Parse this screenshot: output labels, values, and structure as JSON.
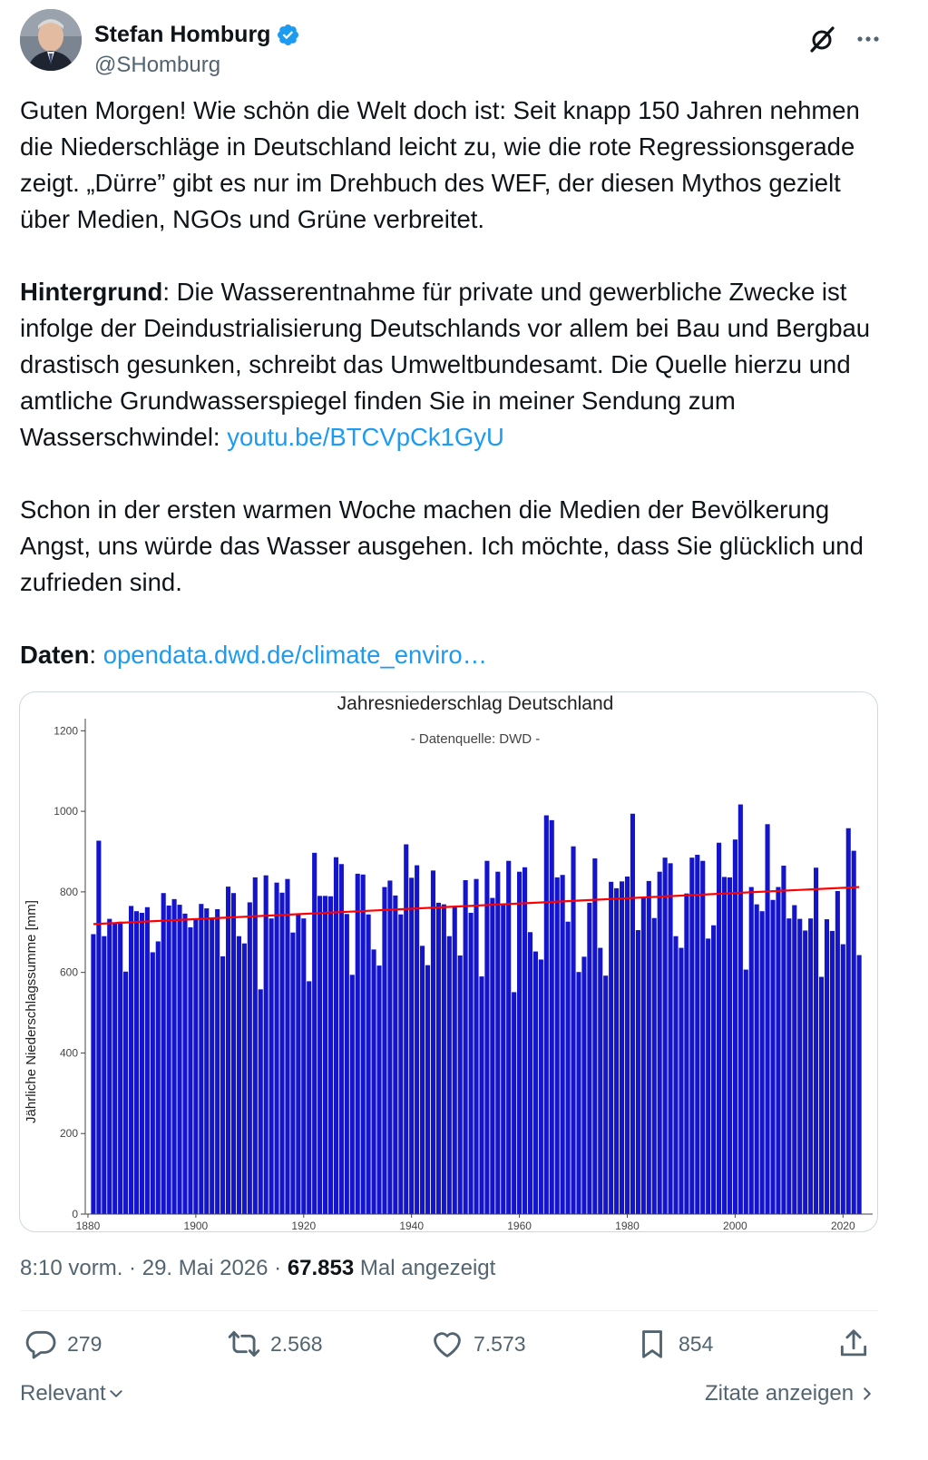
{
  "author": {
    "display_name": "Stefan Homburg",
    "handle": "@SHomburg"
  },
  "icons": {
    "verified": "verified-badge-icon",
    "grok": "grok-icon",
    "more": "more-dots-icon",
    "reply": "reply-bubble-icon",
    "retweet": "retweet-icon",
    "like": "heart-icon",
    "bookmark": "bookmark-icon",
    "share": "share-upload-icon"
  },
  "colors": {
    "link": "#1d9bf0",
    "verified": "#1d9bf0",
    "bars": "#1414cc",
    "regression": "#ff0000",
    "muted": "#536471"
  },
  "tweet": {
    "p1": "Guten Morgen! Wie schön die Welt doch ist: Seit knapp 150 Jahren nehmen die Niederschläge in Deutschland leicht zu, wie die rote Regressionsgerade zeigt. „Dürre” gibt es nur im Drehbuch des WEF, der diesen Mythos gezielt über Medien, NGOs und Grüne verbreitet.",
    "p2_bold": "Hintergrund",
    "p2_text": ": Die Wasserentnahme für private und gewerbliche Zwecke ist infolge der Deindustrialisierung Deutschlands vor allem bei Bau und Bergbau drastisch gesunken, schreibt das Umweltbundesamt. Die Quelle hierzu und amtliche Grundwasserspiegel finden Sie in meiner Sendung zum Wasserschwindel: ",
    "p2_link": "youtu.be/BTCVpCk1GyU",
    "p3": "Schon in der ersten warmen Woche machen die Medien der Bevölkerung Angst, uns würde das Wasser ausgehen. Ich möchte, dass Sie glücklich und zufrieden sind.",
    "p4_bold": "Daten",
    "p4_text": ": ",
    "p4_link": "opendata.dwd.de/climate_enviro…"
  },
  "chart_data": {
    "type": "bar",
    "title": "Jahresniederschlag Deutschland",
    "subtitle": "- Datenquelle: DWD -",
    "xlabel": "",
    "ylabel": "Jährliche Niederschlagssumme [mm]",
    "ylim": [
      0,
      1230
    ],
    "xlim": [
      1879.5,
      2025.5
    ],
    "yticks": [
      0,
      200,
      400,
      600,
      800,
      1000,
      1200
    ],
    "xticks": [
      1880,
      1900,
      1920,
      1940,
      1960,
      1980,
      2000,
      2020
    ],
    "grid": false,
    "start_year": 1881,
    "values": [
      695,
      927,
      690,
      733,
      724,
      726,
      602,
      765,
      752,
      748,
      762,
      650,
      677,
      797,
      766,
      782,
      768,
      746,
      712,
      731,
      770,
      759,
      733,
      757,
      640,
      813,
      797,
      690,
      672,
      774,
      836,
      558,
      841,
      734,
      823,
      798,
      832,
      699,
      746,
      734,
      578,
      897,
      790,
      790,
      789,
      886,
      869,
      745,
      594,
      845,
      843,
      744,
      657,
      617,
      812,
      828,
      791,
      744,
      918,
      835,
      866,
      666,
      618,
      853,
      773,
      769,
      690,
      765,
      642,
      829,
      748,
      832,
      590,
      877,
      785,
      850,
      767,
      877,
      551,
      850,
      861,
      700,
      652,
      632,
      990,
      978,
      836,
      842,
      726,
      913,
      601,
      639,
      773,
      883,
      661,
      592,
      825,
      809,
      826,
      838,
      994,
      705,
      787,
      827,
      735,
      850,
      885,
      871,
      690,
      661,
      796,
      885,
      892,
      877,
      684,
      717,
      922,
      837,
      836,
      930,
      1017,
      607,
      812,
      769,
      752,
      968,
      780,
      812,
      865,
      734,
      767,
      733,
      704,
      734,
      860,
      589,
      732,
      703,
      802,
      670,
      958,
      902,
      643
    ],
    "regression": {
      "x": [
        1881,
        2023
      ],
      "y": [
        720,
        812
      ]
    }
  },
  "meta": {
    "time": "8:10 vorm.",
    "sep1": " · ",
    "date": "29. Mai 2026",
    "sep2": " · ",
    "views": "67.853",
    "views_label": " Mal angezeigt"
  },
  "actions": {
    "replies": "279",
    "retweets": "2.568",
    "likes": "7.573",
    "bookmarks": "854"
  },
  "footer": {
    "sort_label": "Relevant",
    "quotes_label": "Zitate anzeigen"
  }
}
